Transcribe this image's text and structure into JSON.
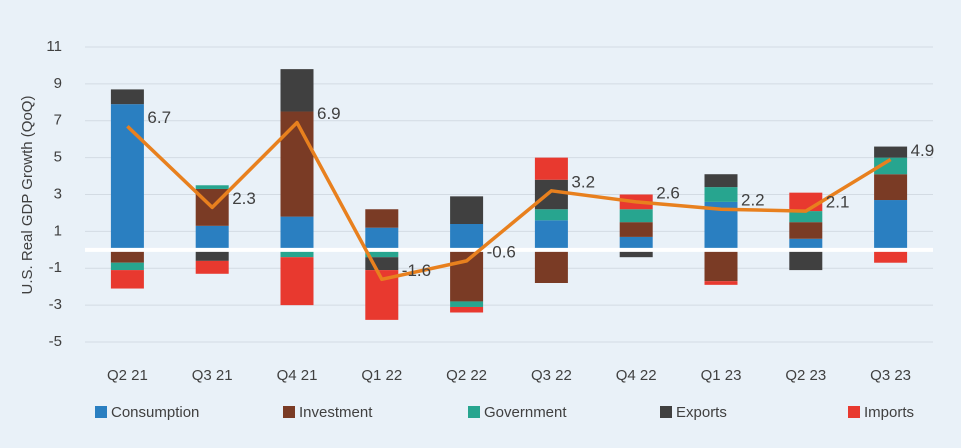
{
  "chart_data": {
    "type": "stacked_bar_line",
    "ylabel": "U.S. Real GDP Growth (QoQ)",
    "categories": [
      "Q2 21",
      "Q3 21",
      "Q4 21",
      "Q1 22",
      "Q2 22",
      "Q3 22",
      "Q4 22",
      "Q1 23",
      "Q2 23",
      "Q3 23"
    ],
    "series": [
      {
        "name": "Consumption",
        "color": "#2a7fc1",
        "values": [
          7.9,
          1.3,
          1.8,
          1.2,
          1.4,
          1.6,
          0.7,
          2.6,
          0.6,
          2.7
        ]
      },
      {
        "name": "Investment",
        "color": "#7a3b25",
        "values": [
          -0.7,
          2.0,
          5.7,
          1.0,
          -2.8,
          -1.8,
          0.8,
          -1.7,
          0.9,
          1.4
        ]
      },
      {
        "name": "Government",
        "color": "#27a58f",
        "values": [
          -0.4,
          0.2,
          -0.4,
          -0.4,
          -0.3,
          0.6,
          0.7,
          0.8,
          0.6,
          0.9
        ]
      },
      {
        "name": "Exports",
        "color": "#404040",
        "values": [
          0.8,
          -0.6,
          2.3,
          -0.7,
          1.5,
          1.6,
          -0.4,
          0.7,
          -1.1,
          0.6
        ]
      },
      {
        "name": "Imports",
        "color": "#e8392f",
        "values": [
          -1.0,
          -0.7,
          -2.6,
          -2.7,
          -0.3,
          1.2,
          0.8,
          -0.2,
          1.0,
          -0.7
        ]
      }
    ],
    "line": {
      "color": "#e8801e",
      "values": [
        6.7,
        2.3,
        6.9,
        -1.6,
        -0.6,
        3.2,
        2.6,
        2.2,
        2.1,
        4.9
      ]
    },
    "ylim": [
      -5,
      11
    ],
    "yticks": [
      -5,
      -3,
      -1,
      1,
      3,
      5,
      7,
      9,
      11
    ],
    "grid": true
  }
}
